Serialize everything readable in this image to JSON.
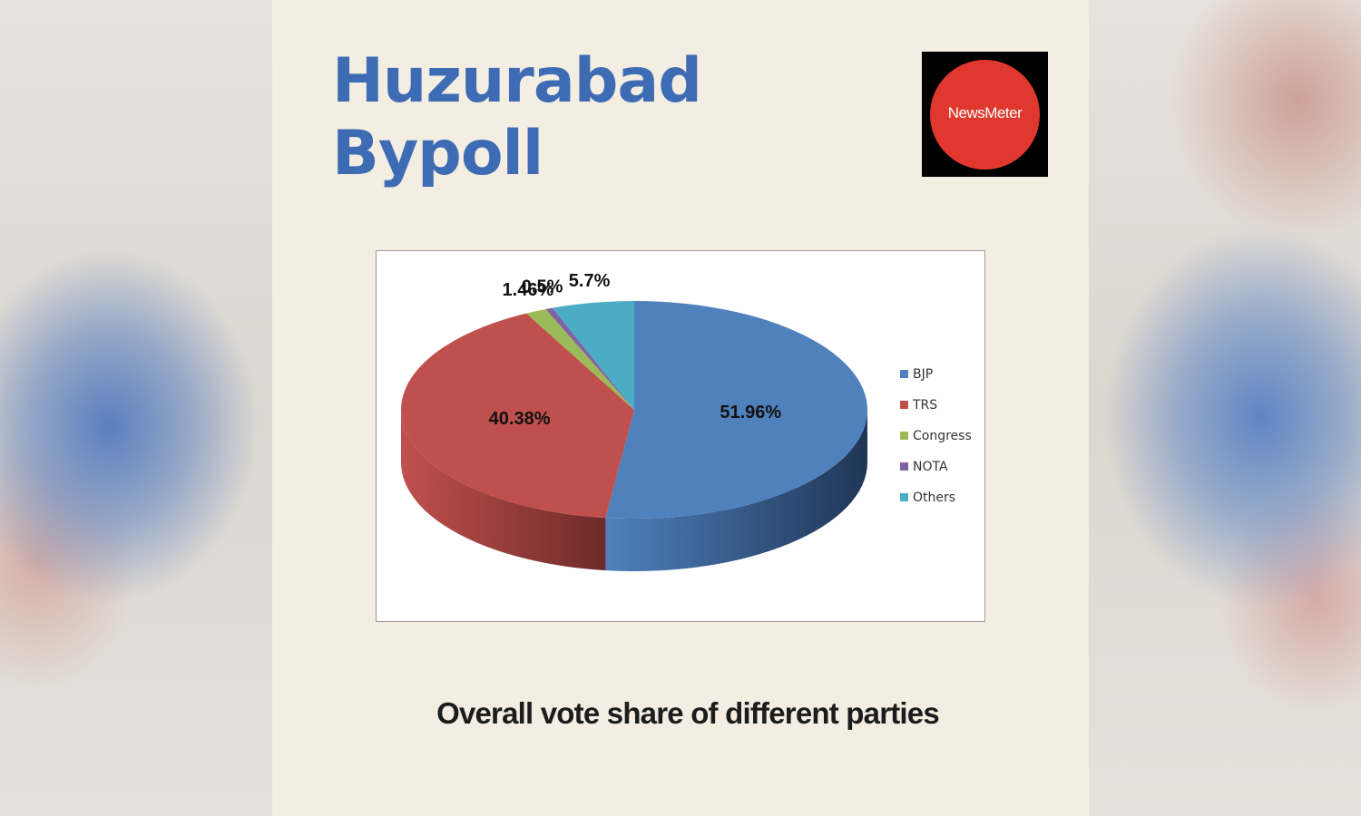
{
  "header": {
    "title_line1": "Huzurabad",
    "title_line2": "Bypoll",
    "logo_text": "NewsMeter"
  },
  "caption": "Overall vote share of different parties",
  "colors": {
    "title": "#3d6cb5",
    "background": "#f3ede2"
  },
  "chart_data": {
    "type": "pie",
    "style": "3d",
    "categories": [
      "BJP",
      "TRS",
      "Congress",
      "NOTA",
      "Others"
    ],
    "values": [
      51.96,
      40.38,
      1.46,
      0.5,
      5.7
    ],
    "labels": [
      "51.96%",
      "40.38%",
      "1.46%",
      "0.5%",
      "5.7%"
    ],
    "colors": [
      "#4f81bd",
      "#c0504d",
      "#9bbb59",
      "#8064a2",
      "#4bacc6"
    ],
    "dark_colors": [
      "#1f3556",
      "#6e2b29",
      "#55692f",
      "#463760",
      "#27687a"
    ],
    "legend_placement": "right",
    "unit": "%"
  }
}
